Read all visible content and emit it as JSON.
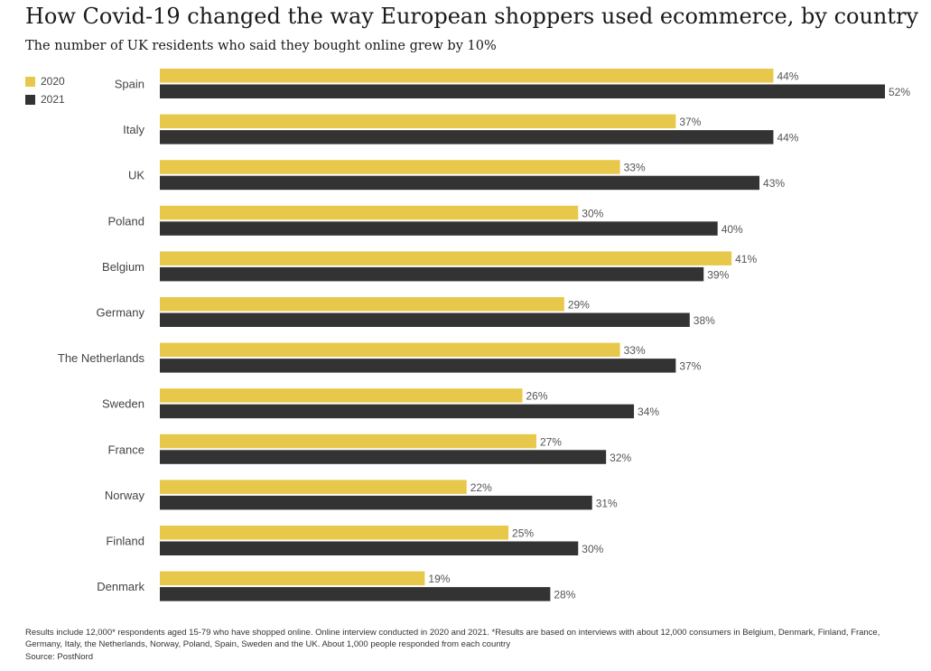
{
  "chart_data": {
    "type": "bar",
    "orientation": "horizontal",
    "title": "How Covid-19 changed the way European shoppers used ecommerce, by country",
    "subtitle": "The number of UK residents who said they bought online grew by 10%",
    "categories": [
      "Spain",
      "Italy",
      "UK",
      "Poland",
      "Belgium",
      "Germany",
      "The Netherlands",
      "Sweden",
      "France",
      "Norway",
      "Finland",
      "Denmark"
    ],
    "series": [
      {
        "name": "2020",
        "color": "#e8c84a",
        "values": [
          44,
          37,
          33,
          30,
          41,
          29,
          33,
          26,
          27,
          22,
          25,
          19
        ]
      },
      {
        "name": "2021",
        "color": "#333333",
        "values": [
          52,
          44,
          43,
          40,
          39,
          38,
          37,
          34,
          32,
          31,
          30,
          28
        ]
      }
    ],
    "value_suffix": "%",
    "xlim": [
      0,
      52
    ],
    "legend_position": "top-left",
    "grid": false
  },
  "footnote": "Results include 12,000* respondents aged 15-79 who have shopped online. Online interview conducted in 2020 and 2021. *Results are based on interviews with about 12,000 consumers in Belgium, Denmark, Finland, France, Germany, Italy, the Netherlands, Norway, Poland, Spain, Sweden and the UK. About 1,000 people responded from each country",
  "source": "Source: PostNord"
}
